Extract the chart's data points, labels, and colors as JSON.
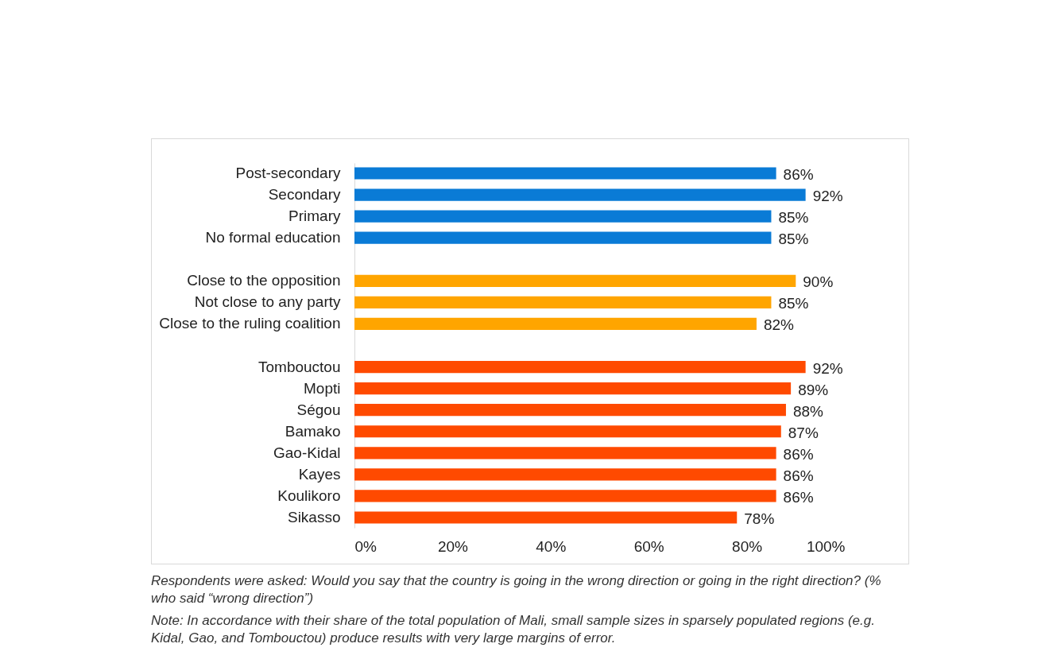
{
  "chart_data": {
    "type": "bar",
    "orientation": "horizontal",
    "categories": [
      "Post-secondary",
      "Secondary",
      "Primary",
      "No formal education",
      null,
      "Close to the opposition",
      "Not close to any party",
      "Close to the ruling coalition",
      null,
      "Tombouctou",
      "Mopti",
      "Ségou",
      "Bamako",
      "Gao-Kidal",
      "Kayes",
      "Koulikoro",
      "Sikasso"
    ],
    "values": [
      86,
      92,
      85,
      85,
      null,
      90,
      85,
      82,
      null,
      92,
      89,
      88,
      87,
      86,
      86,
      86,
      78
    ],
    "value_labels": [
      "86%",
      "92%",
      "85%",
      "85%",
      null,
      "90%",
      "85%",
      "82%",
      null,
      "92%",
      "89%",
      "88%",
      "87%",
      "86%",
      "86%",
      "86%",
      "78%"
    ],
    "colors": [
      "#0a7bd6",
      "#0a7bd6",
      "#0a7bd6",
      "#0a7bd6",
      "#ffffff",
      "#ffa500",
      "#ffa500",
      "#ffa500",
      "#ffffff",
      "#ff4a00",
      "#ff4a00",
      "#ff4a00",
      "#ff4a00",
      "#ff4a00",
      "#ff4a00",
      "#ff4a00",
      "#ff4a00"
    ],
    "xlim": [
      0,
      100
    ],
    "xticks": [
      {
        "value": 0,
        "label": "0%"
      },
      {
        "value": 20,
        "label": "20%"
      },
      {
        "value": 40,
        "label": "40%"
      },
      {
        "value": 60,
        "label": "60%"
      },
      {
        "value": 80,
        "label": "80%"
      },
      {
        "value": 100,
        "label": "100%"
      }
    ],
    "annotations": [
      "Respondents were asked: Would you say that the country is going in the wrong direction or going in the right direction? (% who said “wrong direction”)",
      "Note: In accordance with their share of the total population of Mali, small sample sizes in sparsely populated regions (e.g. Kidal, Gao, and Tombouctou) produce results with very large margins of error."
    ]
  }
}
